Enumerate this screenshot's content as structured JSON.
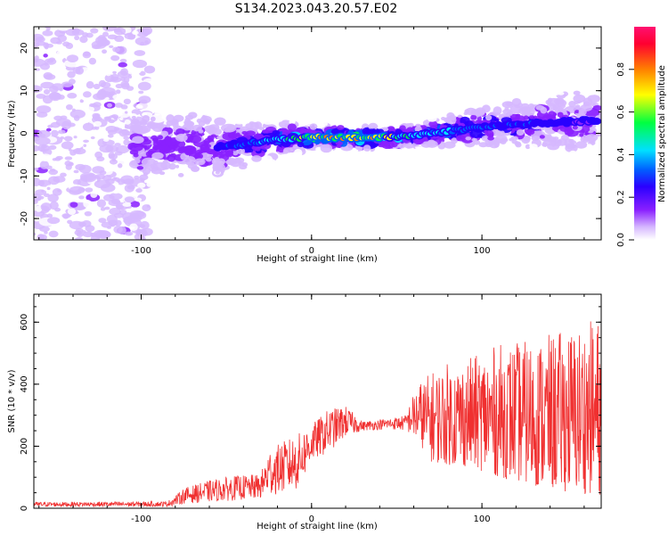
{
  "figure": {
    "title": "S134.2023.043.20.57.E02"
  },
  "chart_data": [
    {
      "type": "heatmap",
      "xlabel": "Height of straight line (km)",
      "ylabel": "Frequency (Hz)",
      "xlim": [
        -163,
        170
      ],
      "ylim": [
        -25,
        25
      ],
      "xticks": [
        -100,
        0,
        100
      ],
      "yticks": [
        -20,
        -10,
        0,
        10,
        20
      ],
      "colorbar": {
        "label": "Normalized spectral amplitude",
        "range": [
          0,
          1
        ],
        "ticks": [
          "0.0",
          "0.2",
          "0.4",
          "0.6",
          "0.8"
        ],
        "colormap": [
          "#ffffff",
          "#d6b8ff",
          "#8a20ff",
          "#2a00ff",
          "#0060ff",
          "#00e0ff",
          "#00ff40",
          "#ffff00",
          "#ff8000",
          "#ff0030"
        ]
      },
      "ridge": {
        "x": [
          -55,
          -40,
          -20,
          0,
          20,
          40,
          60,
          80,
          100,
          120,
          140,
          170
        ],
        "freq": [
          -3,
          -2.5,
          -1.5,
          -1,
          -1,
          -1,
          -0.5,
          0.5,
          1.5,
          2,
          2.5,
          3
        ],
        "peak": [
          0.35,
          0.45,
          0.6,
          0.8,
          0.85,
          0.8,
          0.65,
          0.55,
          0.45,
          0.4,
          0.35,
          0.3
        ]
      },
      "scatter_extent_x": [
        -163,
        -95
      ]
    },
    {
      "type": "line",
      "xlabel": "Height of straight line (km)",
      "ylabel": "SNR (10 * v/v)",
      "xlim": [
        -163,
        170
      ],
      "ylim": [
        0,
        690
      ],
      "xticks": [
        -100,
        0,
        100
      ],
      "yticks": [
        0,
        200,
        400,
        600
      ],
      "color": "#f03030",
      "envelope": {
        "x": [
          -163,
          -85,
          -80,
          -75,
          -60,
          -45,
          -30,
          -25,
          -15,
          -8,
          0,
          10,
          20,
          30,
          45,
          55,
          62,
          70,
          80,
          95,
          110,
          125,
          140,
          155,
          170
        ],
        "low": [
          5,
          5,
          10,
          15,
          20,
          25,
          30,
          40,
          50,
          60,
          150,
          180,
          230,
          250,
          255,
          250,
          220,
          150,
          140,
          130,
          100,
          80,
          60,
          50,
          40
        ],
        "high": [
          20,
          22,
          40,
          65,
          90,
          105,
          110,
          190,
          220,
          240,
          270,
          320,
          330,
          280,
          290,
          300,
          400,
          440,
          470,
          490,
          530,
          540,
          560,
          590,
          620
        ]
      }
    }
  ]
}
